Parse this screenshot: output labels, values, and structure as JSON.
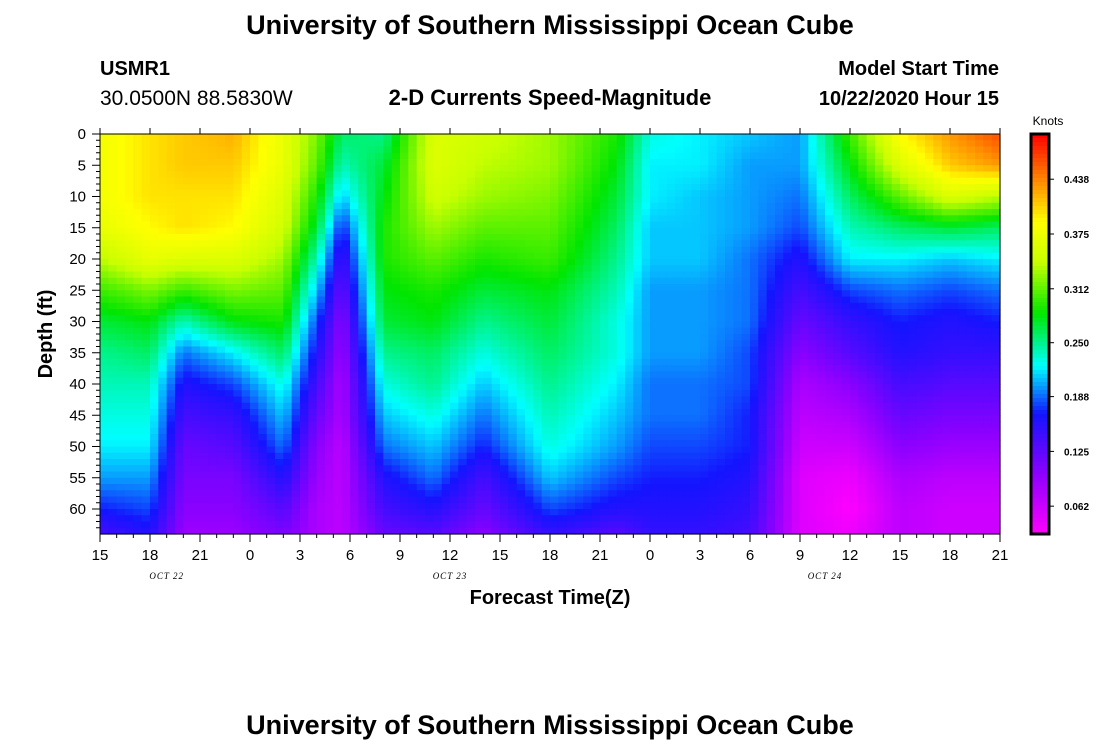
{
  "header": {
    "title": "University of Southern Mississippi Ocean Cube",
    "station_id": "USMR1",
    "coordinates": "30.0500N 88.5830W",
    "subtitle": "2-D Currents Speed-Magnitude",
    "model_start_label": "Model Start Time",
    "model_start_value": "10/22/2020 Hour 15"
  },
  "footer": {
    "title": "University of Southern Mississippi Ocean Cube"
  },
  "chart_data": {
    "type": "heatmap",
    "title": "2-D Currents Speed-Magnitude",
    "xlabel": "Forecast Time(Z)",
    "ylabel": "Depth (ft)",
    "x_range_hours": [
      0,
      54
    ],
    "y_range_ft": [
      0,
      64
    ],
    "x_tick_labels": [
      "15",
      "18",
      "21",
      "0",
      "3",
      "6",
      "9",
      "12",
      "15",
      "18",
      "21",
      "0",
      "3",
      "6",
      "9",
      "12",
      "15",
      "18",
      "21"
    ],
    "y_tick_labels": [
      "0",
      "5",
      "10",
      "15",
      "20",
      "25",
      "30",
      "35",
      "40",
      "45",
      "50",
      "55",
      "60"
    ],
    "date_labels": [
      {
        "label": "OCT 22",
        "hour": 4
      },
      {
        "label": "OCT 23",
        "hour": 21
      },
      {
        "label": "OCT 24",
        "hour": 43.5
      }
    ],
    "colorbar": {
      "title": "Knots",
      "min": 0.03,
      "max": 0.49,
      "ticks": [
        "0.438",
        "0.375",
        "0.312",
        "0.250",
        "0.188",
        "0.125",
        "0.062"
      ]
    },
    "profiles": [
      {
        "hour": 0,
        "speed_knots": [
          0.38,
          0.38,
          0.38,
          0.37,
          0.34,
          0.3,
          0.27,
          0.25,
          0.24,
          0.23,
          0.22,
          0.2,
          0.17,
          0.14
        ]
      },
      {
        "hour": 3,
        "speed_knots": [
          0.4,
          0.4,
          0.4,
          0.39,
          0.37,
          0.32,
          0.28,
          0.26,
          0.24,
          0.23,
          0.22,
          0.2,
          0.18,
          0.16
        ]
      },
      {
        "hour": 5,
        "speed_knots": [
          0.41,
          0.41,
          0.4,
          0.4,
          0.36,
          0.3,
          0.24,
          0.19,
          0.16,
          0.14,
          0.12,
          0.11,
          0.1,
          0.09
        ]
      },
      {
        "hour": 8,
        "speed_knots": [
          0.42,
          0.41,
          0.4,
          0.39,
          0.36,
          0.32,
          0.28,
          0.22,
          0.18,
          0.15,
          0.13,
          0.11,
          0.1,
          0.09
        ]
      },
      {
        "hour": 11,
        "speed_knots": [
          0.37,
          0.37,
          0.36,
          0.35,
          0.33,
          0.31,
          0.29,
          0.26,
          0.23,
          0.21,
          0.19,
          0.16,
          0.13,
          0.11
        ]
      },
      {
        "hour": 13,
        "speed_knots": [
          0.32,
          0.31,
          0.29,
          0.27,
          0.24,
          0.21,
          0.18,
          0.16,
          0.14,
          0.12,
          0.1,
          0.09,
          0.08,
          0.08
        ]
      },
      {
        "hour": 14.5,
        "speed_knots": [
          0.26,
          0.24,
          0.21,
          0.17,
          0.14,
          0.12,
          0.1,
          0.09,
          0.08,
          0.08,
          0.07,
          0.07,
          0.07,
          0.07
        ]
      },
      {
        "hour": 17,
        "speed_knots": [
          0.25,
          0.27,
          0.28,
          0.29,
          0.29,
          0.28,
          0.27,
          0.25,
          0.23,
          0.21,
          0.19,
          0.16,
          0.14,
          0.12
        ]
      },
      {
        "hour": 20,
        "speed_knots": [
          0.36,
          0.36,
          0.35,
          0.33,
          0.31,
          0.29,
          0.28,
          0.26,
          0.25,
          0.23,
          0.21,
          0.19,
          0.16,
          0.13
        ]
      },
      {
        "hour": 23,
        "speed_knots": [
          0.35,
          0.34,
          0.33,
          0.31,
          0.29,
          0.27,
          0.25,
          0.23,
          0.21,
          0.19,
          0.17,
          0.14,
          0.12,
          0.1
        ]
      },
      {
        "hour": 27,
        "speed_knots": [
          0.33,
          0.33,
          0.32,
          0.31,
          0.3,
          0.28,
          0.27,
          0.26,
          0.25,
          0.24,
          0.23,
          0.21,
          0.18,
          0.15
        ]
      },
      {
        "hour": 31,
        "speed_knots": [
          0.29,
          0.28,
          0.27,
          0.26,
          0.25,
          0.24,
          0.23,
          0.23,
          0.22,
          0.21,
          0.2,
          0.18,
          0.16,
          0.13
        ]
      },
      {
        "hour": 33,
        "speed_knots": [
          0.23,
          0.22,
          0.22,
          0.21,
          0.21,
          0.2,
          0.2,
          0.2,
          0.19,
          0.19,
          0.18,
          0.17,
          0.16,
          0.15
        ]
      },
      {
        "hour": 36,
        "speed_knots": [
          0.22,
          0.22,
          0.21,
          0.21,
          0.21,
          0.2,
          0.2,
          0.2,
          0.19,
          0.19,
          0.18,
          0.17,
          0.16,
          0.15
        ]
      },
      {
        "hour": 39,
        "speed_knots": [
          0.21,
          0.2,
          0.2,
          0.2,
          0.19,
          0.19,
          0.19,
          0.18,
          0.18,
          0.17,
          0.17,
          0.16,
          0.15,
          0.14
        ]
      },
      {
        "hour": 42,
        "speed_knots": [
          0.2,
          0.2,
          0.19,
          0.18,
          0.16,
          0.14,
          0.12,
          0.1,
          0.08,
          0.07,
          0.06,
          0.05,
          0.05,
          0.05
        ]
      },
      {
        "hour": 45,
        "speed_knots": [
          0.3,
          0.28,
          0.26,
          0.24,
          0.22,
          0.18,
          0.15,
          0.13,
          0.1,
          0.08,
          0.06,
          0.04,
          0.03,
          0.04
        ]
      },
      {
        "hour": 48,
        "speed_knots": [
          0.39,
          0.36,
          0.31,
          0.26,
          0.22,
          0.19,
          0.17,
          0.16,
          0.14,
          0.12,
          0.1,
          0.08,
          0.07,
          0.07
        ]
      },
      {
        "hour": 51,
        "speed_knots": [
          0.43,
          0.41,
          0.36,
          0.27,
          0.21,
          0.18,
          0.16,
          0.15,
          0.13,
          0.11,
          0.09,
          0.07,
          0.06,
          0.06
        ]
      },
      {
        "hour": 54,
        "speed_knots": [
          0.46,
          0.43,
          0.34,
          0.26,
          0.22,
          0.19,
          0.17,
          0.15,
          0.13,
          0.11,
          0.09,
          0.07,
          0.06,
          0.06
        ]
      }
    ],
    "profile_depths_ft": [
      0,
      5,
      10,
      15,
      20,
      25,
      30,
      35,
      40,
      45,
      50,
      55,
      60,
      64
    ]
  }
}
